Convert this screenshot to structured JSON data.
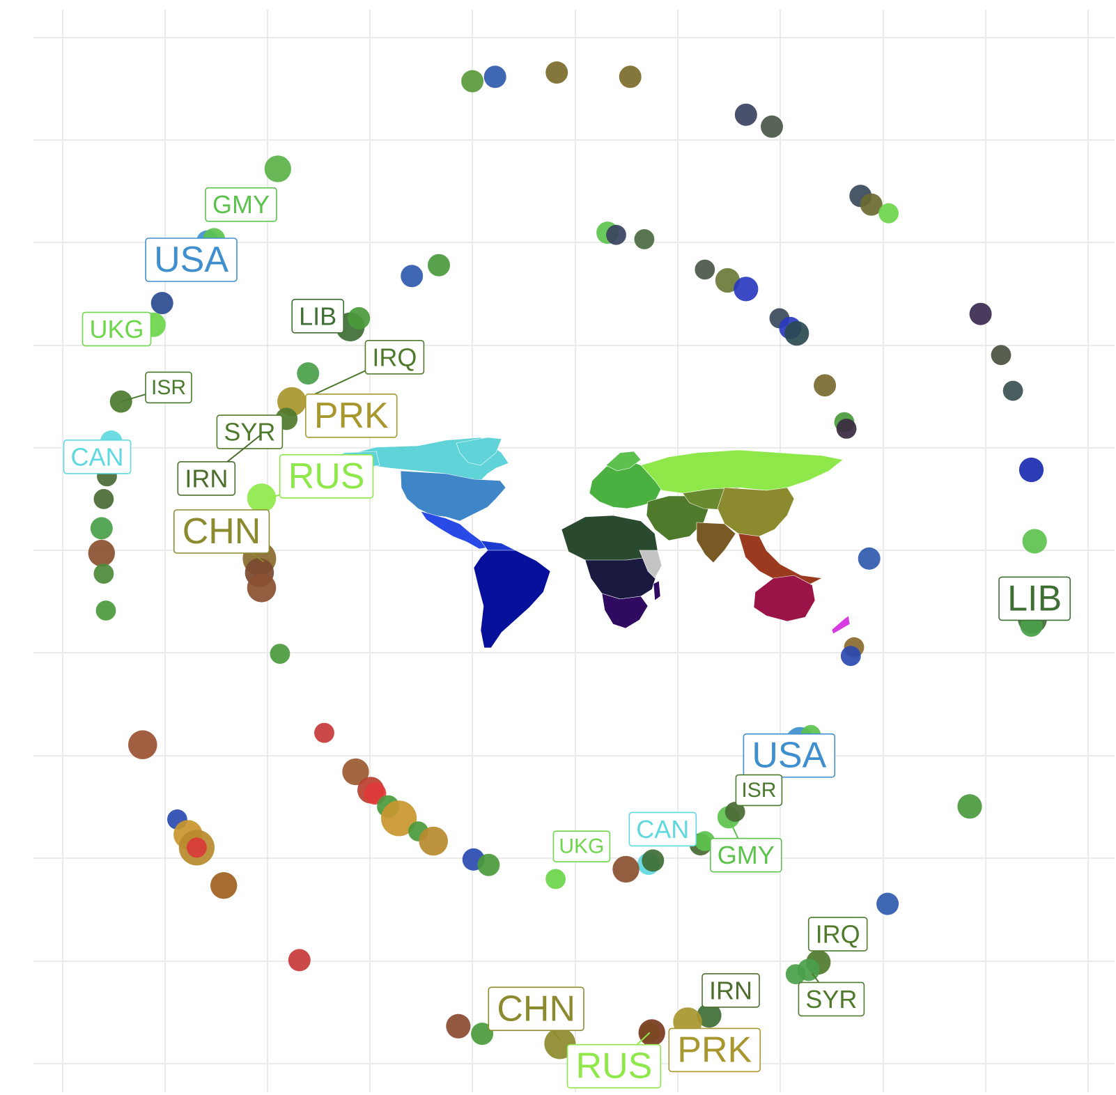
{
  "chart_data": {
    "type": "scatter",
    "title": "",
    "xlabel": "",
    "ylabel": "",
    "xlim": [
      0,
      100
    ],
    "ylim": [
      0,
      100
    ],
    "grid": true,
    "legend": "none",
    "inset": "world-map",
    "country_colors": {
      "USA": "#3f8fcf",
      "GMY": "#5cc24d",
      "UKG": "#6dd64a",
      "CAN": "#5fd8e0",
      "ISR": "#4a7a2e",
      "LIB": "#3f6e35",
      "IRQ": "#4f7a2c",
      "PRK": "#a8962e",
      "SYR": "#4f7a2c",
      "IRN": "#4b6e2c",
      "RUS": "#8ee84a",
      "CHN": "#8c8a2e"
    },
    "series": [
      {
        "name": "",
        "points": [
          {
            "x": 40.6,
            "y": 93.4,
            "c": "#5a9a3c",
            "r": 1.0
          },
          {
            "x": 42.7,
            "y": 93.8,
            "c": "#2f5aae",
            "r": 1.0
          },
          {
            "x": 48.4,
            "y": 94.2,
            "c": "#7b6a2a",
            "r": 1.0
          },
          {
            "x": 55.2,
            "y": 93.8,
            "c": "#7b6a2a",
            "r": 1.0
          },
          {
            "x": 65.9,
            "y": 90.3,
            "c": "#3a4260",
            "r": 1.0
          },
          {
            "x": 68.3,
            "y": 89.2,
            "c": "#4a5848",
            "r": 1.0
          },
          {
            "x": 76.5,
            "y": 82.8,
            "c": "#3a4a5a",
            "r": 1.0
          },
          {
            "x": 77.5,
            "y": 82.0,
            "c": "#6a6a30",
            "r": 1.0
          },
          {
            "x": 79.1,
            "y": 81.2,
            "c": "#6dd64a",
            "r": 0.9
          },
          {
            "x": 22.6,
            "y": 85.3,
            "c": "#5cb24a",
            "r": 1.2
          },
          {
            "x": 16.1,
            "y": 78.6,
            "c": "#3f8fcf",
            "r": 1.0
          },
          {
            "x": 16.7,
            "y": 78.8,
            "c": "#5cc24d",
            "r": 1.0
          },
          {
            "x": 11.9,
            "y": 72.9,
            "c": "#2a4a90",
            "r": 1.0
          },
          {
            "x": 11.1,
            "y": 70.9,
            "c": "#6dd64a",
            "r": 1.1
          },
          {
            "x": 8.1,
            "y": 63.8,
            "c": "#4a7a2e",
            "r": 1.0
          },
          {
            "x": 7.2,
            "y": 60.1,
            "c": "#5fd8e0",
            "r": 1.0
          },
          {
            "x": 6.8,
            "y": 56.9,
            "c": "#4a6a34",
            "r": 0.9
          },
          {
            "x": 6.5,
            "y": 54.8,
            "c": "#4a6a34",
            "r": 0.9
          },
          {
            "x": 6.3,
            "y": 52.1,
            "c": "#4aa04a",
            "r": 1.0
          },
          {
            "x": 6.3,
            "y": 49.8,
            "c": "#8a5030",
            "r": 1.2
          },
          {
            "x": 6.5,
            "y": 47.9,
            "c": "#4a8a38",
            "r": 0.9
          },
          {
            "x": 6.7,
            "y": 44.5,
            "c": "#4a9a3c",
            "r": 0.9
          },
          {
            "x": 29.3,
            "y": 70.7,
            "c": "#3f6e35",
            "r": 1.3
          },
          {
            "x": 30.1,
            "y": 71.5,
            "c": "#4a9a3c",
            "r": 1.0
          },
          {
            "x": 35.0,
            "y": 75.4,
            "c": "#2f5aae",
            "r": 1.0
          },
          {
            "x": 37.5,
            "y": 76.4,
            "c": "#4a9a3c",
            "r": 1.0
          },
          {
            "x": 25.4,
            "y": 66.4,
            "c": "#4aa04a",
            "r": 1.0
          },
          {
            "x": 23.9,
            "y": 63.8,
            "c": "#a8962e",
            "r": 1.3
          },
          {
            "x": 23.4,
            "y": 62.2,
            "c": "#4f7a2c",
            "r": 1.0
          },
          {
            "x": 21.1,
            "y": 54.9,
            "c": "#8ee84a",
            "r": 1.3
          },
          {
            "x": 20.9,
            "y": 49.3,
            "c": "#8a6a2c",
            "r": 1.5
          },
          {
            "x": 20.9,
            "y": 48.0,
            "c": "#7a4a30",
            "r": 1.3
          },
          {
            "x": 21.1,
            "y": 46.6,
            "c": "#8a5030",
            "r": 1.3
          },
          {
            "x": 22.8,
            "y": 40.5,
            "c": "#4a9a3c",
            "r": 0.9
          },
          {
            "x": 53.1,
            "y": 79.4,
            "c": "#5cc24d",
            "r": 1.0
          },
          {
            "x": 53.9,
            "y": 79.2,
            "c": "#3a4260",
            "r": 0.9
          },
          {
            "x": 56.5,
            "y": 78.8,
            "c": "#4a6a40",
            "r": 0.9
          },
          {
            "x": 62.1,
            "y": 76.0,
            "c": "#4a5848",
            "r": 0.9
          },
          {
            "x": 64.2,
            "y": 75.0,
            "c": "#6a7a38",
            "r": 1.1
          },
          {
            "x": 65.9,
            "y": 74.2,
            "c": "#2a3ac0",
            "r": 1.1
          },
          {
            "x": 69.0,
            "y": 71.5,
            "c": "#3a4a5a",
            "r": 0.9
          },
          {
            "x": 70.0,
            "y": 70.6,
            "c": "#2a3ac0",
            "r": 1.0
          },
          {
            "x": 70.6,
            "y": 70.1,
            "c": "#2a4a50",
            "r": 1.1
          },
          {
            "x": 73.2,
            "y": 65.3,
            "c": "#7a6a30",
            "r": 1.0
          },
          {
            "x": 75.0,
            "y": 61.9,
            "c": "#4a9a3c",
            "r": 0.9
          },
          {
            "x": 75.2,
            "y": 61.3,
            "c": "#3a2a40",
            "r": 0.9
          },
          {
            "x": 87.6,
            "y": 71.9,
            "c": "#3a2a50",
            "r": 1.0
          },
          {
            "x": 89.5,
            "y": 68.1,
            "c": "#4a5040",
            "r": 0.9
          },
          {
            "x": 90.6,
            "y": 64.8,
            "c": "#3a5050",
            "r": 0.9
          },
          {
            "x": 92.3,
            "y": 57.5,
            "c": "#1a2ab0",
            "r": 1.1
          },
          {
            "x": 92.6,
            "y": 50.9,
            "c": "#5cc24d",
            "r": 1.1
          },
          {
            "x": 77.3,
            "y": 49.3,
            "c": "#2f5aae",
            "r": 1.0
          },
          {
            "x": 92.3,
            "y": 45.4,
            "c": "#2f5aae",
            "r": 1.0
          },
          {
            "x": 92.4,
            "y": 43.7,
            "c": "#3f6e35",
            "r": 1.3
          },
          {
            "x": 92.3,
            "y": 43.1,
            "c": "#4aa04a",
            "r": 1.0
          },
          {
            "x": 75.9,
            "y": 41.1,
            "c": "#8a6a2c",
            "r": 0.9
          },
          {
            "x": 75.6,
            "y": 40.3,
            "c": "#2a4ab0",
            "r": 0.9
          },
          {
            "x": 70.9,
            "y": 32.4,
            "c": "#3f8fcf",
            "r": 1.3
          },
          {
            "x": 71.9,
            "y": 33.0,
            "c": "#5cc24d",
            "r": 0.9
          },
          {
            "x": 86.6,
            "y": 26.4,
            "c": "#4a9a3c",
            "r": 1.1
          },
          {
            "x": 64.3,
            "y": 25.4,
            "c": "#5cc24d",
            "r": 1.0
          },
          {
            "x": 64.9,
            "y": 25.9,
            "c": "#4a6a34",
            "r": 0.9
          },
          {
            "x": 61.7,
            "y": 22.9,
            "c": "#4a6a34",
            "r": 1.0
          },
          {
            "x": 62.1,
            "y": 23.2,
            "c": "#5cc24d",
            "r": 0.9
          },
          {
            "x": 56.9,
            "y": 21.1,
            "c": "#5fd8e0",
            "r": 1.0
          },
          {
            "x": 57.3,
            "y": 21.4,
            "c": "#3f6e35",
            "r": 1.0
          },
          {
            "x": 54.8,
            "y": 20.6,
            "c": "#8a5030",
            "r": 1.2
          },
          {
            "x": 48.3,
            "y": 19.7,
            "c": "#6dd64a",
            "r": 0.9
          },
          {
            "x": 79.0,
            "y": 17.4,
            "c": "#2f5aae",
            "r": 1.0
          },
          {
            "x": 72.6,
            "y": 12.0,
            "c": "#4f7a2c",
            "r": 1.1
          },
          {
            "x": 71.7,
            "y": 11.3,
            "c": "#4aa04a",
            "r": 1.0
          },
          {
            "x": 70.5,
            "y": 10.9,
            "c": "#4aa04a",
            "r": 0.9
          },
          {
            "x": 62.5,
            "y": 7.1,
            "c": "#3f6e35",
            "r": 1.1
          },
          {
            "x": 60.5,
            "y": 6.5,
            "c": "#a8962e",
            "r": 1.3
          },
          {
            "x": 57.0,
            "y": 5.5,
            "c": "#8ee84a",
            "r": 0.9
          },
          {
            "x": 57.2,
            "y": 5.5,
            "c": "#7a3a20",
            "r": 1.2
          },
          {
            "x": 48.7,
            "y": 4.5,
            "c": "#8c8a2e",
            "r": 1.4
          },
          {
            "x": 41.5,
            "y": 5.4,
            "c": "#4a9a3c",
            "r": 1.0
          },
          {
            "x": 39.3,
            "y": 6.1,
            "c": "#8a4a30",
            "r": 1.1
          },
          {
            "x": 10.1,
            "y": 32.1,
            "c": "#9a5030",
            "r": 1.3
          },
          {
            "x": 13.3,
            "y": 25.2,
            "c": "#2a4ab0",
            "r": 0.9
          },
          {
            "x": 14.3,
            "y": 23.8,
            "c": "#c8962e",
            "r": 1.3
          },
          {
            "x": 15.1,
            "y": 22.6,
            "c": "#b88a2e",
            "r": 1.6
          },
          {
            "x": 15.1,
            "y": 22.6,
            "c": "#d83a3a",
            "r": 0.9
          },
          {
            "x": 17.6,
            "y": 19.1,
            "c": "#a0601e",
            "r": 1.2
          },
          {
            "x": 26.9,
            "y": 33.2,
            "c": "#c83a3a",
            "r": 0.9
          },
          {
            "x": 29.8,
            "y": 29.6,
            "c": "#9a5a30",
            "r": 1.2
          },
          {
            "x": 31.2,
            "y": 27.9,
            "c": "#b84030",
            "r": 1.2
          },
          {
            "x": 31.6,
            "y": 27.6,
            "c": "#e03a3a",
            "r": 1.0
          },
          {
            "x": 32.8,
            "y": 26.4,
            "c": "#4a9a3c",
            "r": 1.0
          },
          {
            "x": 33.8,
            "y": 25.3,
            "c": "#c8962e",
            "r": 1.6
          },
          {
            "x": 35.6,
            "y": 24.1,
            "c": "#4a9a3c",
            "r": 0.9
          },
          {
            "x": 37.0,
            "y": 23.2,
            "c": "#b88a2e",
            "r": 1.3
          },
          {
            "x": 40.7,
            "y": 21.5,
            "c": "#2a4ab0",
            "r": 1.0
          },
          {
            "x": 42.1,
            "y": 21.0,
            "c": "#4a9a3c",
            "r": 1.0
          },
          {
            "x": 24.6,
            "y": 12.2,
            "c": "#c83a3a",
            "r": 1.0
          }
        ]
      }
    ],
    "labels": [
      {
        "text": "GMY",
        "country": "GMY",
        "x": 19.2,
        "y": 82.0,
        "size": "m"
      },
      {
        "text": "USA",
        "country": "USA",
        "x": 14.6,
        "y": 76.9,
        "size": "l"
      },
      {
        "text": "UKG",
        "country": "UKG",
        "x": 7.7,
        "y": 70.5,
        "size": "m"
      },
      {
        "text": "ISR",
        "country": "ISR",
        "x": 12.5,
        "y": 65.1,
        "size": "s",
        "lx": 8.1,
        "ly": 63.8
      },
      {
        "text": "CAN",
        "country": "CAN",
        "x": 5.9,
        "y": 58.7,
        "size": "m"
      },
      {
        "text": "LIB",
        "country": "LIB",
        "x": 26.3,
        "y": 71.7,
        "size": "m"
      },
      {
        "text": "IRQ",
        "country": "IRQ",
        "x": 33.4,
        "y": 67.9,
        "size": "m",
        "lx": 25.4,
        "ly": 64.2
      },
      {
        "text": "PRK",
        "country": "PRK",
        "x": 29.4,
        "y": 62.5,
        "size": "l"
      },
      {
        "text": "SYR",
        "country": "SYR",
        "x": 20.0,
        "y": 61.0,
        "size": "m"
      },
      {
        "text": "IRN",
        "country": "IRN",
        "x": 16.0,
        "y": 56.7,
        "size": "m",
        "lx": 21.0,
        "ly": 60.7
      },
      {
        "text": "RUS",
        "country": "RUS",
        "x": 27.1,
        "y": 56.9,
        "size": "l",
        "lx": 22.0,
        "ly": 54.9
      },
      {
        "text": "CHN",
        "country": "CHN",
        "x": 17.4,
        "y": 51.8,
        "size": "l",
        "lx": 21.3,
        "ly": 49.0
      },
      {
        "text": "LIB",
        "country": "LIB",
        "x": 92.6,
        "y": 45.6,
        "size": "l"
      },
      {
        "text": "USA",
        "country": "USA",
        "x": 69.9,
        "y": 31.1,
        "size": "l"
      },
      {
        "text": "ISR",
        "country": "ISR",
        "x": 67.1,
        "y": 27.9,
        "size": "s"
      },
      {
        "text": "CAN",
        "country": "CAN",
        "x": 58.2,
        "y": 24.3,
        "size": "m"
      },
      {
        "text": "GMY",
        "country": "GMY",
        "x": 65.9,
        "y": 21.9,
        "size": "m",
        "lx": 64.4,
        "ly": 25.1
      },
      {
        "text": "UKG",
        "country": "UKG",
        "x": 50.7,
        "y": 22.7,
        "size": "s"
      },
      {
        "text": "IRQ",
        "country": "IRQ",
        "x": 74.4,
        "y": 14.6,
        "size": "m"
      },
      {
        "text": "SYR",
        "country": "SYR",
        "x": 73.8,
        "y": 8.6,
        "size": "m",
        "lx": 72.0,
        "ly": 11.0
      },
      {
        "text": "IRN",
        "country": "IRN",
        "x": 64.5,
        "y": 9.4,
        "size": "m"
      },
      {
        "text": "CHN",
        "country": "CHN",
        "x": 46.5,
        "y": 7.7,
        "size": "l",
        "lx": 48.7,
        "ly": 4.8
      },
      {
        "text": "RUS",
        "country": "RUS",
        "x": 53.7,
        "y": 2.4,
        "size": "l",
        "lx": 57.0,
        "ly": 5.5
      },
      {
        "text": "PRK",
        "country": "PRK",
        "x": 63.0,
        "y": 3.9,
        "size": "l"
      }
    ]
  }
}
